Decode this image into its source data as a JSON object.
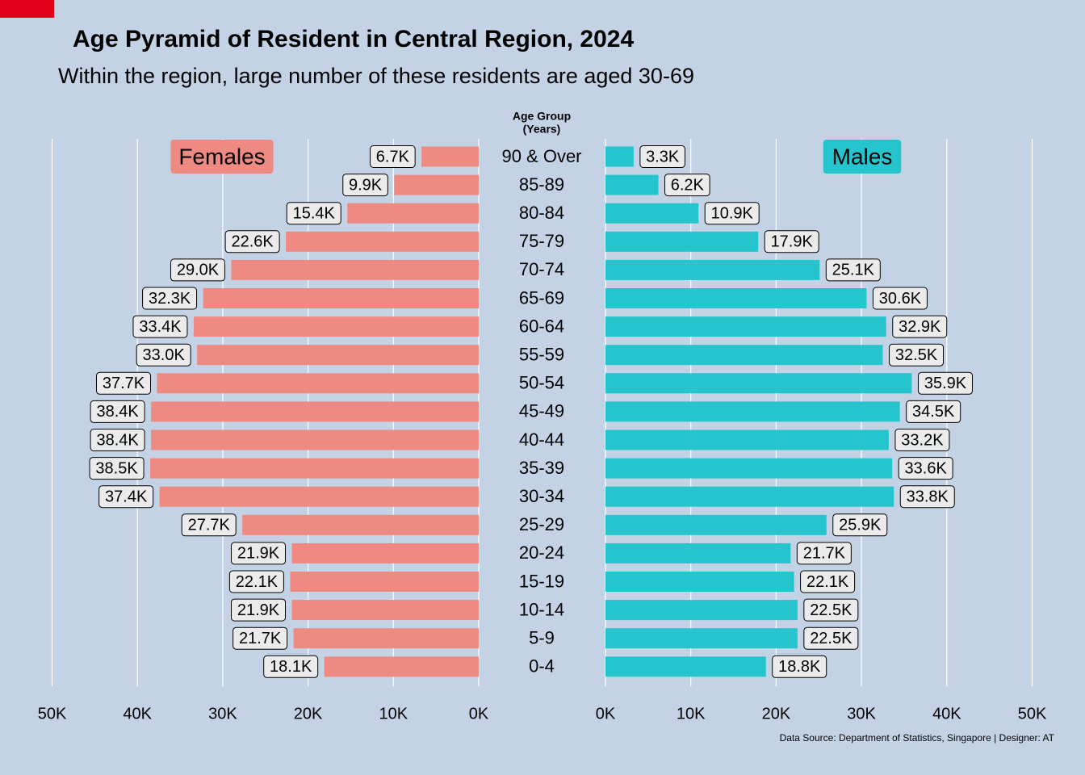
{
  "title": "Age Pyramid of Resident in Central Region, 2024",
  "subtitle": "Within the region, large number of these residents are aged 30-69",
  "caption": "Data Source: Department of Statistics, Singapore | Designer: AT",
  "colors": {
    "background": "#c3d3e5",
    "females": "#ee8a82",
    "males": "#26c4cc",
    "corner_mark": "#e2001a",
    "gridline": "#ffffff"
  },
  "chart_data": {
    "type": "bar",
    "orientation": "horizontal-pyramid",
    "center_header": [
      "Age Group",
      "(Years)"
    ],
    "categories": [
      "90 & Over",
      "85-89",
      "80-84",
      "75-79",
      "70-74",
      "65-69",
      "60-64",
      "55-59",
      "50-54",
      "45-49",
      "40-44",
      "35-39",
      "30-34",
      "25-29",
      "20-24",
      "15-19",
      "10-14",
      "5-9",
      "0-4"
    ],
    "series": [
      {
        "name": "Females",
        "side": "left",
        "values": [
          6.7,
          9.9,
          15.4,
          22.6,
          29.0,
          32.3,
          33.4,
          33.0,
          37.7,
          38.4,
          38.4,
          38.5,
          37.4,
          27.7,
          21.9,
          22.1,
          21.9,
          21.7,
          18.1
        ],
        "labels": [
          "6.7K",
          "9.9K",
          "15.4K",
          "22.6K",
          "29.0K",
          "32.3K",
          "33.4K",
          "33.0K",
          "37.7K",
          "38.4K",
          "38.4K",
          "38.5K",
          "37.4K",
          "27.7K",
          "21.9K",
          "22.1K",
          "21.9K",
          "21.7K",
          "18.1K"
        ]
      },
      {
        "name": "Males",
        "side": "right",
        "values": [
          3.3,
          6.2,
          10.9,
          17.9,
          25.1,
          30.6,
          32.9,
          32.5,
          35.9,
          34.5,
          33.2,
          33.6,
          33.8,
          25.9,
          21.7,
          22.1,
          22.5,
          22.5,
          18.8
        ],
        "labels": [
          "3.3K",
          "6.2K",
          "10.9K",
          "17.9K",
          "25.1K",
          "30.6K",
          "32.9K",
          "32.5K",
          "35.9K",
          "34.5K",
          "33.2K",
          "33.6K",
          "33.8K",
          "25.9K",
          "21.7K",
          "22.1K",
          "22.5K",
          "22.5K",
          "18.8K"
        ]
      }
    ],
    "xlim": [
      0,
      50
    ],
    "x_unit": "thousands",
    "left_ticks": [
      "50K",
      "40K",
      "30K",
      "20K",
      "10K",
      "0K"
    ],
    "right_ticks": [
      "0K",
      "10K",
      "20K",
      "30K",
      "40K",
      "50K"
    ],
    "grid": "vertical major"
  }
}
